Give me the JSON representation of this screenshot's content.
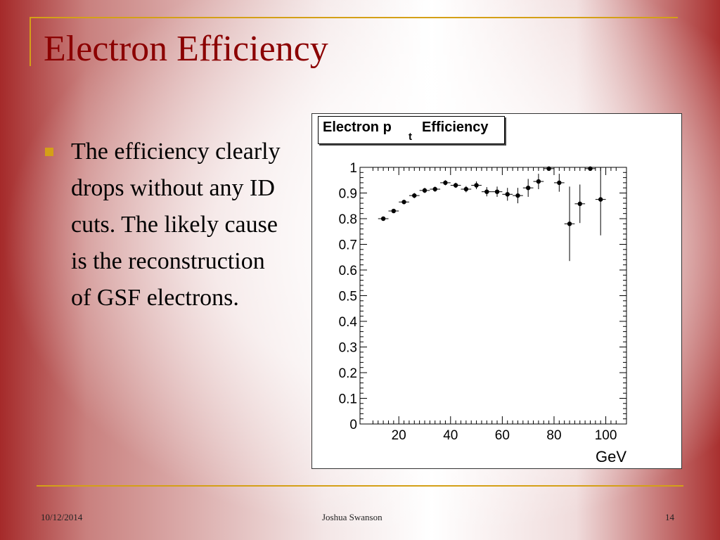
{
  "slide": {
    "title": "Electron Efficiency",
    "bullet": "The efficiency clearly drops without any ID cuts.  The likely cause is the reconstruction of GSF electrons."
  },
  "footer": {
    "date": "10/12/2014",
    "author": "Joshua Swanson",
    "page": "14"
  },
  "colors": {
    "accent": "#d4a017",
    "title": "#8b0000"
  },
  "chart_data": {
    "type": "scatter",
    "title_main": "Electron p",
    "title_sub": "t",
    "title_rest": "Efficiency",
    "xlabel": "GeV",
    "ylabel": "",
    "xlim": [
      5,
      108
    ],
    "ylim": [
      0,
      1
    ],
    "x_ticks": [
      20,
      40,
      60,
      80,
      100
    ],
    "y_ticks": [
      0,
      0.1,
      0.2,
      0.3,
      0.4,
      0.5,
      0.6,
      0.7,
      0.8,
      0.9,
      1
    ],
    "y_tick_labels": [
      "0",
      "0.1",
      "0.2",
      "0.3",
      "0.4",
      "0.5",
      "0.6",
      "0.7",
      "0.8",
      "0.9",
      "1"
    ],
    "grid": false,
    "series": [
      {
        "points": [
          {
            "x": 14,
            "y": 0.8,
            "xerr": 2,
            "yerr": 0.008
          },
          {
            "x": 18,
            "y": 0.83,
            "xerr": 2,
            "yerr": 0.008
          },
          {
            "x": 22,
            "y": 0.865,
            "xerr": 2,
            "yerr": 0.008
          },
          {
            "x": 26,
            "y": 0.89,
            "xerr": 2,
            "yerr": 0.01
          },
          {
            "x": 30,
            "y": 0.91,
            "xerr": 2,
            "yerr": 0.01
          },
          {
            "x": 34,
            "y": 0.915,
            "xerr": 2,
            "yerr": 0.01
          },
          {
            "x": 38,
            "y": 0.94,
            "xerr": 2,
            "yerr": 0.01
          },
          {
            "x": 42,
            "y": 0.93,
            "xerr": 2,
            "yerr": 0.01
          },
          {
            "x": 46,
            "y": 0.915,
            "xerr": 2,
            "yerr": 0.012
          },
          {
            "x": 50,
            "y": 0.93,
            "xerr": 2,
            "yerr": 0.015
          },
          {
            "x": 54,
            "y": 0.905,
            "xerr": 2,
            "yerr": 0.018
          },
          {
            "x": 58,
            "y": 0.905,
            "xerr": 2,
            "yerr": 0.02
          },
          {
            "x": 62,
            "y": 0.895,
            "xerr": 2,
            "yerr": 0.025
          },
          {
            "x": 66,
            "y": 0.89,
            "xerr": 2,
            "yerr": 0.03
          },
          {
            "x": 70,
            "y": 0.92,
            "xerr": 2,
            "yerr": 0.035
          },
          {
            "x": 74,
            "y": 0.945,
            "xerr": 2,
            "yerr": 0.03
          },
          {
            "x": 78,
            "y": 0.995,
            "xerr": 2,
            "yerr": 0.005
          },
          {
            "x": 82,
            "y": 0.94,
            "xerr": 2,
            "yerr": 0.035
          },
          {
            "x": 86,
            "y": 0.78,
            "xerr": 2,
            "yerr": 0.145
          },
          {
            "x": 90,
            "y": 0.858,
            "xerr": 2,
            "yerr": 0.075
          },
          {
            "x": 94,
            "y": 0.995,
            "xerr": 2,
            "yerr": 0.005
          },
          {
            "x": 98,
            "y": 0.875,
            "xerr": 2,
            "yerr": 0.14
          }
        ]
      }
    ]
  }
}
